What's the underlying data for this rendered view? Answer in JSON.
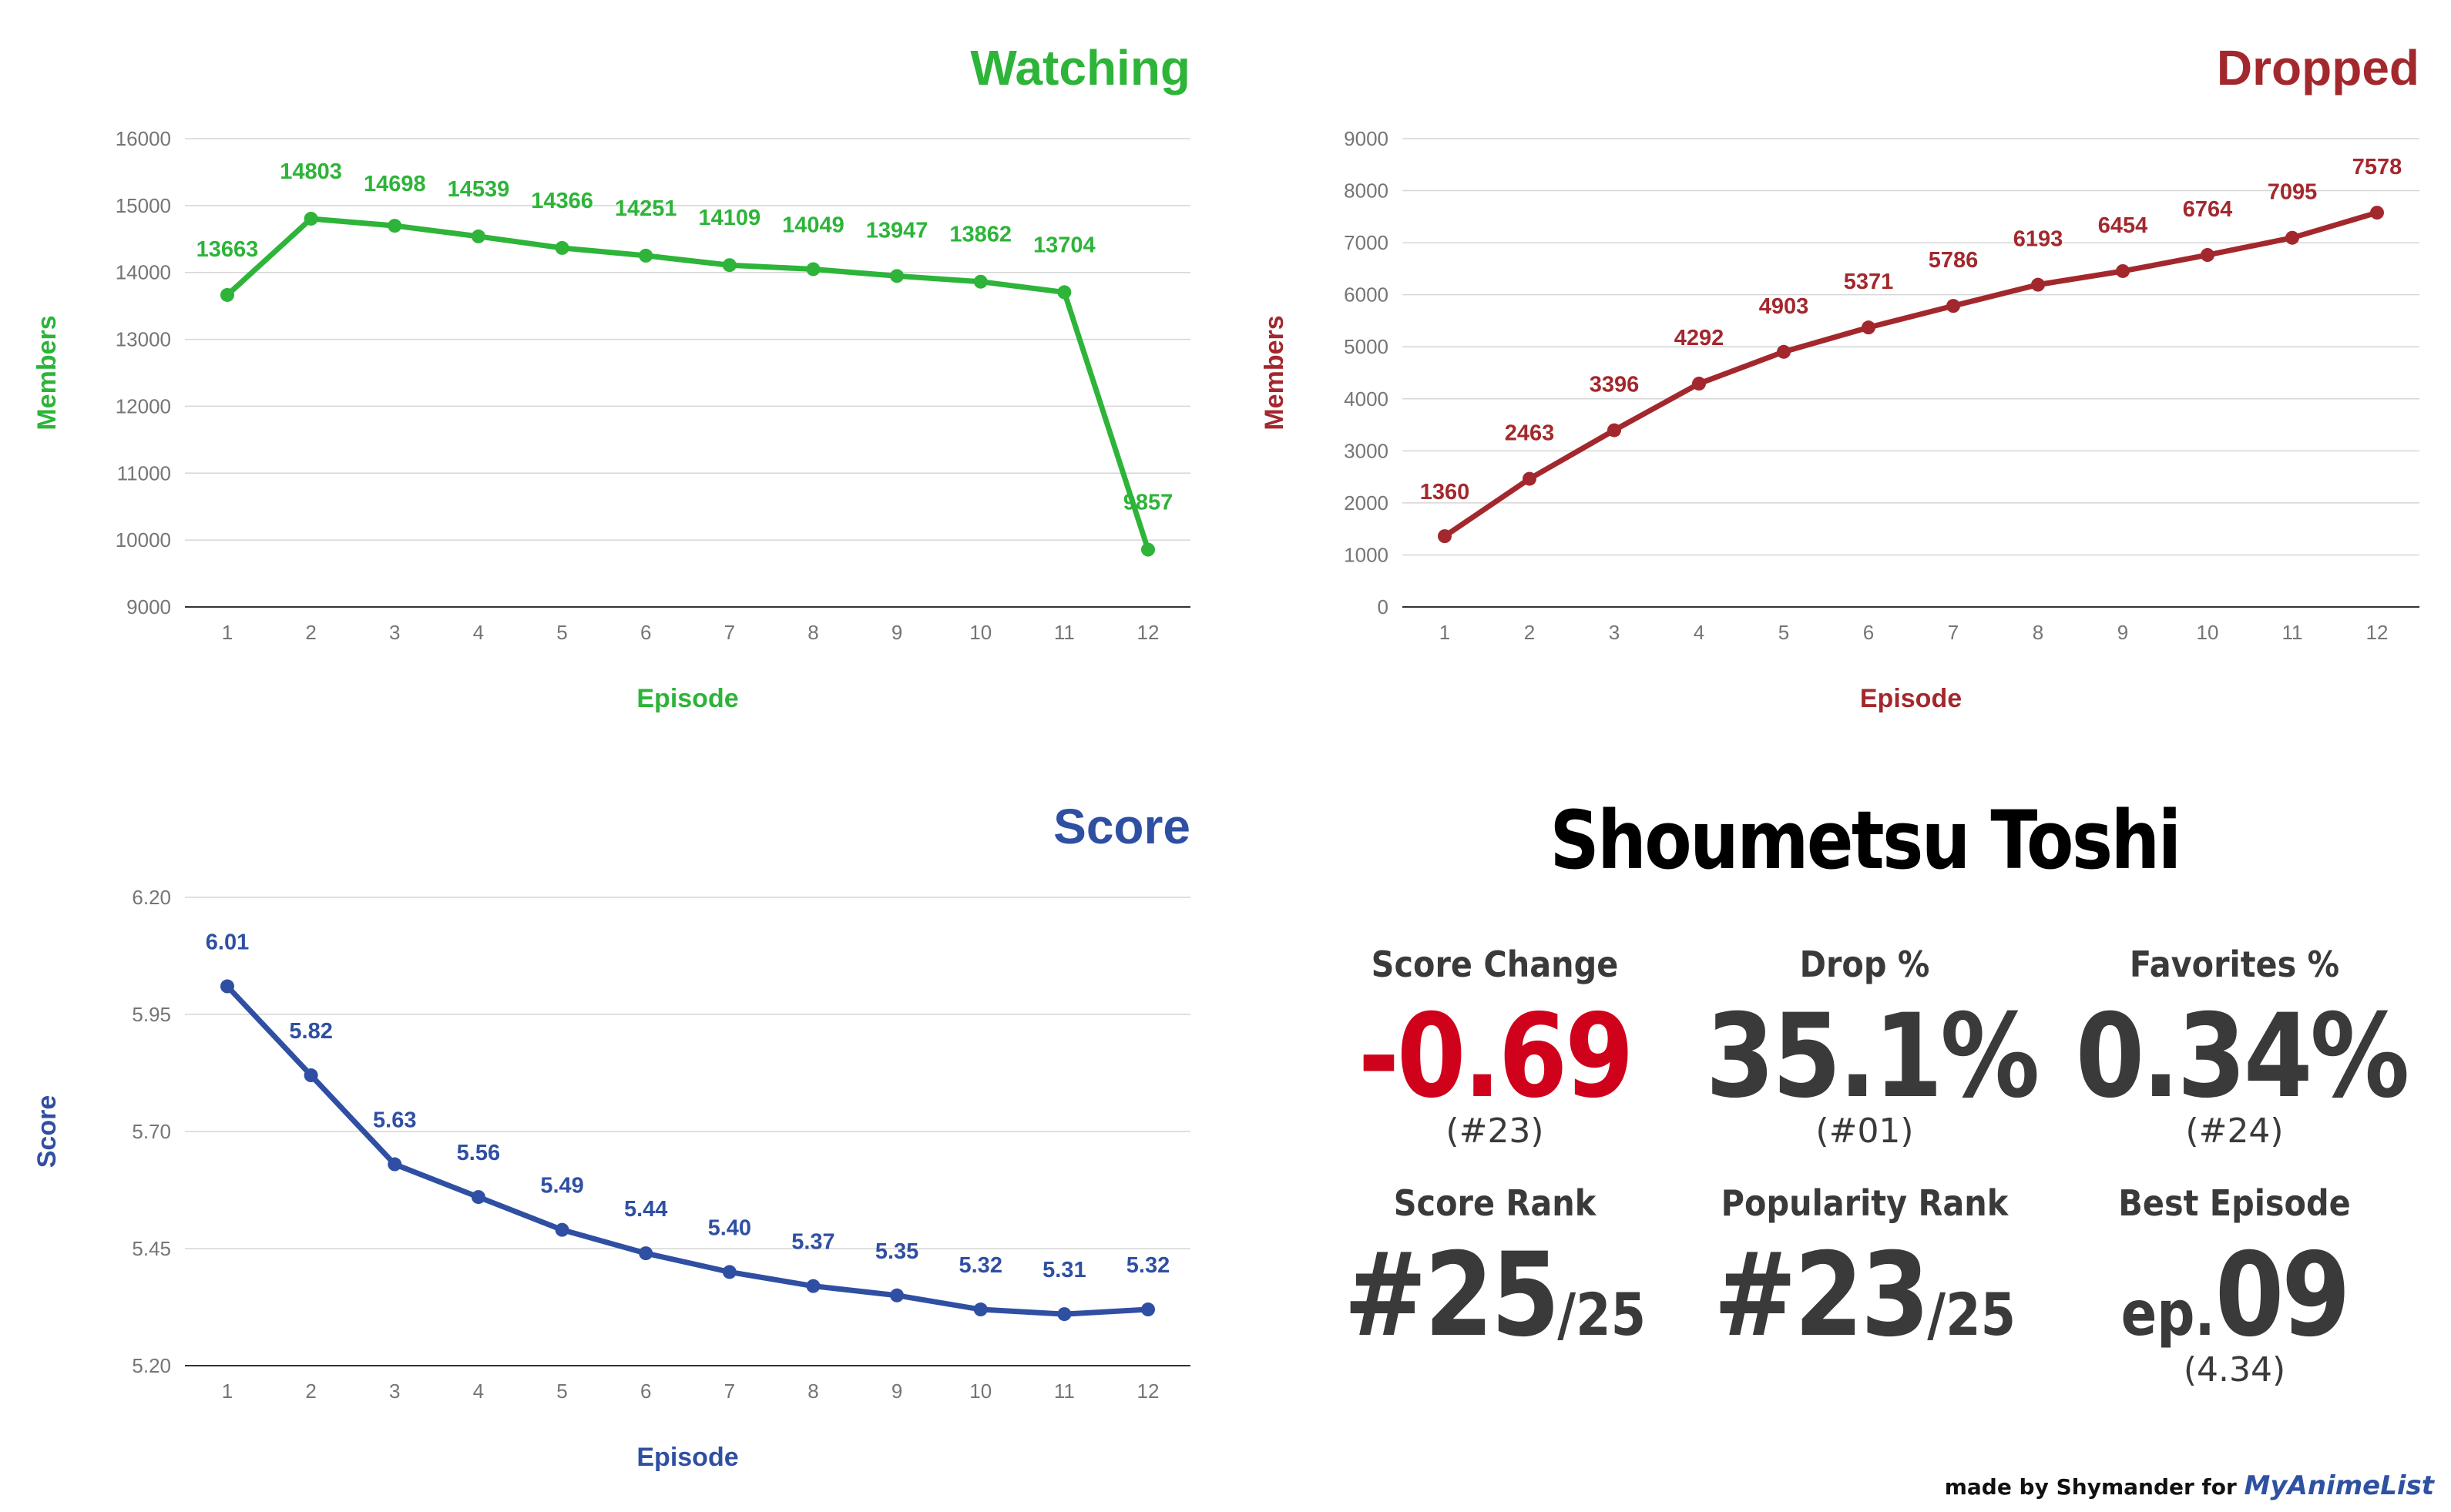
{
  "chart_data": [
    {
      "type": "line",
      "title": "Watching",
      "xlabel": "Episode",
      "ylabel": "Members",
      "color": "#2db439",
      "x": [
        "1",
        "2",
        "3",
        "4",
        "5",
        "6",
        "7",
        "8",
        "9",
        "10",
        "11",
        "12"
      ],
      "values": [
        13663,
        14803,
        14698,
        14539,
        14366,
        14251,
        14109,
        14049,
        13947,
        13862,
        13704,
        9857
      ],
      "labels": [
        "13663",
        "14803",
        "14698",
        "14539",
        "14366",
        "14251",
        "14109",
        "14049",
        "13947",
        "13862",
        "13704",
        "9857"
      ],
      "yticks": [
        "9000",
        "10000",
        "11000",
        "12000",
        "13000",
        "14000",
        "15000",
        "16000"
      ],
      "ylim": [
        9000,
        16000
      ]
    },
    {
      "type": "line",
      "title": "Dropped",
      "xlabel": "Episode",
      "ylabel": "Members",
      "color": "#a3282d",
      "x": [
        "1",
        "2",
        "3",
        "4",
        "5",
        "6",
        "7",
        "8",
        "9",
        "10",
        "11",
        "12"
      ],
      "values": [
        1360,
        2463,
        3396,
        4292,
        4903,
        5371,
        5786,
        6193,
        6454,
        6764,
        7095,
        7578
      ],
      "labels": [
        "1360",
        "2463",
        "3396",
        "4292",
        "4903",
        "5371",
        "5786",
        "6193",
        "6454",
        "6764",
        "7095",
        "7578"
      ],
      "yticks": [
        "0",
        "1000",
        "2000",
        "3000",
        "4000",
        "5000",
        "6000",
        "7000",
        "8000",
        "9000"
      ],
      "ylim": [
        0,
        9000
      ]
    },
    {
      "type": "line",
      "title": "Score",
      "xlabel": "Episode",
      "ylabel": "Score",
      "color": "#2f4fa3",
      "x": [
        "1",
        "2",
        "3",
        "4",
        "5",
        "6",
        "7",
        "8",
        "9",
        "10",
        "11",
        "12"
      ],
      "values": [
        6.01,
        5.82,
        5.63,
        5.56,
        5.49,
        5.44,
        5.4,
        5.37,
        5.35,
        5.32,
        5.31,
        5.32
      ],
      "labels": [
        "6.01",
        "5.82",
        "5.63",
        "5.56",
        "5.49",
        "5.44",
        "5.40",
        "5.37",
        "5.35",
        "5.32",
        "5.31",
        "5.32"
      ],
      "yticks": [
        "5.20",
        "5.45",
        "5.70",
        "5.95",
        "6.20"
      ],
      "ylim": [
        5.2,
        6.2
      ]
    }
  ],
  "summary": {
    "show_title": "Shoumetsu Toshi",
    "score_change": {
      "label": "Score Change",
      "value": "-0.69",
      "rank": "(#23)",
      "color": "#d0021b"
    },
    "drop_pct": {
      "label": "Drop %",
      "value": "35.1%",
      "rank": "(#01)"
    },
    "favorites_pct": {
      "label": "Favorites %",
      "value": "0.34%",
      "rank": "(#24)"
    },
    "score_rank": {
      "label": "Score Rank",
      "value": "#25",
      "total": "/25"
    },
    "popularity_rank": {
      "label": "Popularity Rank",
      "value": "#23",
      "total": "/25"
    },
    "best_episode": {
      "label": "Best Episode",
      "prefix": "ep.",
      "value": "09",
      "score": "(4.34)"
    }
  },
  "credit": {
    "prefix": "made by Shymander for",
    "brand": "MyAnimeList"
  }
}
